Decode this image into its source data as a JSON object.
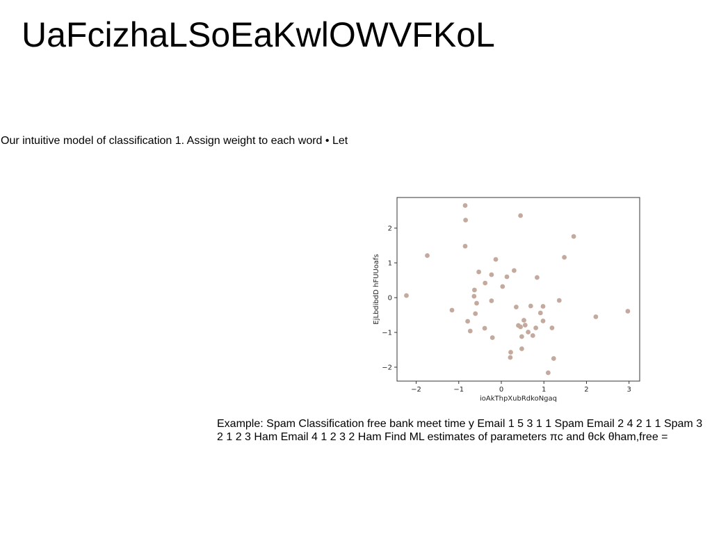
{
  "slide": {
    "title": "UaFcizhaLSoEaKwlOWVFKoL",
    "intro_text": "Our intuitive model of classification 1. Assign weight to each word • Let",
    "example_text": "Example: Spam Classification free bank meet time y Email 1 5 3 1 1 Spam Email 2 4 2 1 1 Spam 3 2 1 2 3 Ham Email 4 1 2 3 2 Ham Find ML estimates of parameters πc and θck θham,free ="
  },
  "chart_data": {
    "type": "scatter",
    "xlabel": "ioAkThpXubRdkoNgaq",
    "ylabel": "EjLbdibdD hFUUoafs",
    "xlim": [
      -2.45,
      3.25
    ],
    "ylim": [
      -2.4,
      2.88
    ],
    "xticks": [
      -2,
      -1,
      0,
      1,
      2,
      3
    ],
    "yticks": [
      -2,
      -1,
      0,
      1,
      2
    ],
    "xtick_labels": [
      "−2",
      "−1",
      "0",
      "1",
      "2",
      "3"
    ],
    "ytick_labels": [
      "−2",
      "−1",
      "0",
      "1",
      "2"
    ],
    "grid": false,
    "point_color": "#c4aa9e",
    "series": [
      {
        "x": [
          -0.85,
          -0.84,
          -0.85,
          -2.23,
          -1.74,
          0.45,
          1.7,
          1.48,
          -0.13,
          0.3,
          -0.53,
          -0.23,
          -0.38,
          0.13,
          0.84,
          0.03,
          -0.63,
          -0.64,
          -0.58,
          -0.23,
          -0.61,
          0.35,
          0.69,
          0.98,
          1.36,
          -1.16,
          0.92,
          -0.79,
          0.53,
          0.4,
          0.56,
          0.98,
          0.63,
          0.45,
          -0.73,
          -0.39,
          0.81,
          1.19,
          0.74,
          -0.21,
          0.48,
          0.48,
          0.22,
          0.21,
          1.23,
          1.1,
          2.22,
          2.97
        ],
        "y": [
          2.65,
          2.23,
          1.48,
          0.06,
          1.21,
          2.36,
          1.76,
          1.16,
          1.1,
          0.78,
          0.74,
          0.66,
          0.42,
          0.6,
          0.58,
          0.32,
          0.22,
          0.04,
          -0.16,
          -0.09,
          -0.46,
          -0.27,
          -0.24,
          -0.25,
          -0.08,
          -0.36,
          -0.44,
          -0.68,
          -0.65,
          -0.8,
          -0.79,
          -0.67,
          -0.99,
          -0.84,
          -0.96,
          -0.88,
          -0.87,
          -0.87,
          -1.09,
          -1.15,
          -1.12,
          -1.47,
          -1.57,
          -1.72,
          -1.75,
          -2.16,
          -0.55,
          -0.39
        ]
      }
    ]
  }
}
